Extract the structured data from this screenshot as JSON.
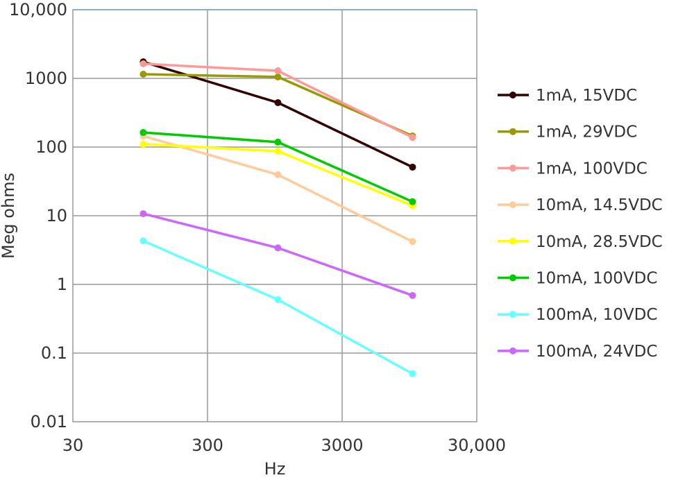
{
  "chart_data": {
    "type": "line",
    "title": "",
    "xlabel": "Hz",
    "ylabel": "Meg ohms",
    "x_scale": "log",
    "y_scale": "log",
    "xlim": [
      30,
      30000
    ],
    "ylim": [
      0.01,
      10000
    ],
    "x_ticks": [
      "30",
      "300",
      "3000",
      "30,000"
    ],
    "y_ticks": [
      "0.01",
      "0.1",
      "1",
      "10",
      "100",
      "1000",
      "10,000"
    ],
    "grid": true,
    "legend_position": "right",
    "x": [
      100,
      1000,
      10000
    ],
    "series": [
      {
        "name": "1mA, 15VDC",
        "color": "#330000",
        "values": [
          1740,
          443,
          51
        ]
      },
      {
        "name": "1mA, 29VDC",
        "color": "#999900",
        "values": [
          1150,
          1050,
          145
        ]
      },
      {
        "name": "1mA, 100VDC",
        "color": "#ff9999",
        "values": [
          1630,
          1290,
          138
        ]
      },
      {
        "name": "10mA, 14.5VDC",
        "color": "#ffcc99",
        "values": [
          145,
          39.5,
          4.2
        ]
      },
      {
        "name": "10mA, 28.5VDC",
        "color": "#ffff00",
        "values": [
          110,
          87,
          14
        ]
      },
      {
        "name": "10mA, 100VDC",
        "color": "#00cc00",
        "values": [
          163,
          118,
          16
        ]
      },
      {
        "name": "100mA, 10VDC",
        "color": "#66ffff",
        "values": [
          4.3,
          0.6,
          0.05
        ]
      },
      {
        "name": "100mA, 24VDC",
        "color": "#cc66ff",
        "values": [
          10.7,
          3.4,
          0.69
        ]
      }
    ]
  }
}
